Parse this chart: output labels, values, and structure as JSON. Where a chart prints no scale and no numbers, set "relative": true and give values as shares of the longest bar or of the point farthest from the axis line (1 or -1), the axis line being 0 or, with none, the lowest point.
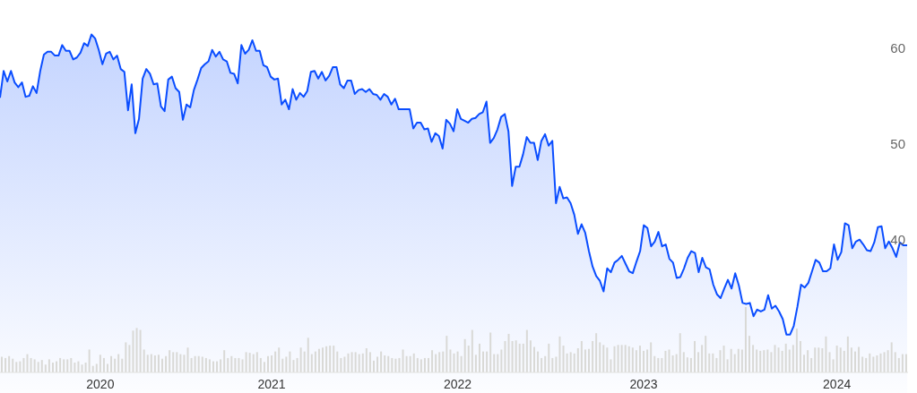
{
  "chart_data": [
    {
      "type": "area",
      "tick_labels": "y",
      "ylim": [
        24,
        65
      ],
      "yticks": [
        40,
        50,
        60
      ],
      "categories": [
        null,
        null,
        null,
        null,
        null,
        null,
        null,
        null,
        null,
        null,
        null,
        null,
        null,
        null,
        null,
        null,
        null,
        null,
        null,
        null,
        null,
        null,
        null,
        null,
        null,
        null,
        null,
        "2020",
        null,
        null,
        null,
        null,
        null,
        null,
        null,
        null,
        null,
        null,
        null,
        null,
        null,
        null,
        null,
        null,
        null,
        null,
        null,
        null,
        null,
        null,
        null,
        null,
        null,
        null,
        null,
        null,
        null,
        null,
        null,
        null,
        null,
        null,
        null,
        null,
        null,
        null,
        null,
        null,
        null,
        null,
        null,
        null,
        null,
        null,
        "2021",
        null,
        null,
        null,
        null,
        null,
        null,
        null,
        null,
        null,
        null,
        null,
        null,
        null,
        null,
        null,
        null,
        null,
        null,
        null,
        null,
        null,
        null,
        null,
        null,
        null,
        null,
        null,
        null,
        null,
        null,
        null,
        null,
        null,
        null,
        null,
        null,
        null,
        null,
        null,
        null,
        null,
        null,
        null,
        null,
        null,
        null,
        null,
        null,
        null,
        null,
        "2022",
        null,
        null,
        null,
        null,
        null,
        null,
        null,
        null,
        null,
        null,
        null,
        null,
        null,
        null,
        null,
        null,
        null,
        null,
        null,
        null,
        null,
        null,
        null,
        null,
        null,
        null,
        null,
        null,
        null,
        null,
        null,
        null,
        null,
        null,
        null,
        null,
        null,
        null,
        null,
        null,
        null,
        null,
        null,
        null,
        null,
        null,
        null,
        null,
        null,
        null,
        "2023",
        null,
        null,
        null,
        null,
        null,
        null,
        null,
        null,
        null,
        null,
        null,
        null,
        null,
        null,
        null,
        null,
        null,
        null,
        null,
        null,
        null,
        null,
        null,
        null,
        null,
        null,
        null,
        null,
        null,
        null,
        null,
        null,
        null,
        null,
        null,
        null,
        null,
        null,
        null,
        null,
        null,
        null,
        null,
        null,
        null,
        null,
        null,
        null,
        null,
        null,
        null,
        null,
        "2024",
        null,
        null,
        null,
        null,
        null,
        null,
        null,
        null,
        null,
        null,
        null,
        null,
        null,
        null,
        null,
        null,
        null,
        null,
        null
      ],
      "series": [
        {
          "color": "#0a4dff",
          "values": [
            54.8,
            57.6,
            56.5,
            57.6,
            56.4,
            55.9,
            56.4,
            54.9,
            55.0,
            56.0,
            55.3,
            57.6,
            59.3,
            59.6,
            59.6,
            59.2,
            59.2,
            60.3,
            59.7,
            59.7,
            58.8,
            59.0,
            59.5,
            60.5,
            60.2,
            61.4,
            61.0,
            59.8,
            58.3,
            59.4,
            59.6,
            58.8,
            59.2,
            57.8,
            57.5,
            53.5,
            56.2,
            51.1,
            52.6,
            56.8,
            57.8,
            57.3,
            56.2,
            56.3,
            53.9,
            53.4,
            56.7,
            57.0,
            55.8,
            55.4,
            52.5,
            54.1,
            53.8,
            55.6,
            56.7,
            57.9,
            58.3,
            58.6,
            59.8,
            59.1,
            59.6,
            58.8,
            58.6,
            57.4,
            57.3,
            56.3,
            60.3,
            59.4,
            59.8,
            60.8,
            59.7,
            59.7,
            58.2,
            58.0,
            57.0,
            56.7,
            56.8,
            54.1,
            54.6,
            53.6,
            55.7,
            54.6,
            55.3,
            54.9,
            55.5,
            57.5,
            57.6,
            56.8,
            57.5,
            56.6,
            57.1,
            58.0,
            58.0,
            56.2,
            55.8,
            56.6,
            56.6,
            55.2,
            55.6,
            55.7,
            55.4,
            55.7,
            55.2,
            55.1,
            54.6,
            55.2,
            54.9,
            54.1,
            54.7,
            53.6,
            53.6,
            53.6,
            53.6,
            51.6,
            52.2,
            52.2,
            51.5,
            51.6,
            50.2,
            51.1,
            50.8,
            49.5,
            52.5,
            52.1,
            51.3,
            53.6,
            52.6,
            52.4,
            52.2,
            52.6,
            52.7,
            53.1,
            53.3,
            54.4,
            50.1,
            50.6,
            51.5,
            52.8,
            53.1,
            51.3,
            45.6,
            47.6,
            47.6,
            48.9,
            50.7,
            50.1,
            50.1,
            48.3,
            50.3,
            51.0,
            49.8,
            50.3,
            43.8,
            45.5,
            44.3,
            44.4,
            43.8,
            42.6,
            40.6,
            41.6,
            40.7,
            38.8,
            37.2,
            36.2,
            35.7,
            34.6,
            37.0,
            36.6,
            37.6,
            37.9,
            38.3,
            37.5,
            36.7,
            36.5,
            37.7,
            38.8,
            41.5,
            41.2,
            39.3,
            39.8,
            40.8,
            39.3,
            39.5,
            38.0,
            37.6,
            36.0,
            36.1,
            37.0,
            38.1,
            38.8,
            38.6,
            36.6,
            38.1,
            37.1,
            36.9,
            35.3,
            34.3,
            33.9,
            34.9,
            35.8,
            34.9,
            36.5,
            35.2,
            33.4,
            33.3,
            33.4,
            32.0,
            32.7,
            32.5,
            32.7,
            34.2,
            32.8,
            33.1,
            32.5,
            31.7,
            30.1,
            30.1,
            31.0,
            33.0,
            35.3,
            35.0,
            35.5,
            36.7,
            37.9,
            37.6,
            36.7,
            36.7,
            37.0,
            39.5,
            37.9,
            38.7,
            41.7,
            41.5,
            39.1,
            39.8,
            40.0,
            39.5,
            38.9,
            38.8,
            39.7,
            41.3,
            41.4,
            39.1,
            39.8,
            39.1,
            38.2,
            39.7,
            39.4,
            39.4
          ]
        }
      ]
    },
    {
      "type": "bar",
      "relative": true,
      "tick_labels": "x",
      "color": "#d9d9d6",
      "categories": [
        null,
        null,
        null,
        null,
        null,
        null,
        null,
        null,
        null,
        null,
        null,
        null,
        null,
        null,
        null,
        null,
        null,
        null,
        null,
        null,
        null,
        null,
        null,
        null,
        null,
        null,
        null,
        "2020",
        null,
        null,
        null,
        null,
        null,
        null,
        null,
        null,
        null,
        null,
        null,
        null,
        null,
        null,
        null,
        null,
        null,
        null,
        null,
        null,
        null,
        null,
        null,
        null,
        null,
        null,
        null,
        null,
        null,
        null,
        null,
        null,
        null,
        null,
        null,
        null,
        null,
        null,
        null,
        null,
        null,
        null,
        null,
        null,
        null,
        null,
        "2021",
        null,
        null,
        null,
        null,
        null,
        null,
        null,
        null,
        null,
        null,
        null,
        null,
        null,
        null,
        null,
        null,
        null,
        null,
        null,
        null,
        null,
        null,
        null,
        null,
        null,
        null,
        null,
        null,
        null,
        null,
        null,
        null,
        null,
        null,
        null,
        null,
        null,
        null,
        null,
        null,
        null,
        null,
        null,
        null,
        null,
        null,
        null,
        null,
        null,
        null,
        "2022",
        null,
        null,
        null,
        null,
        null,
        null,
        null,
        null,
        null,
        null,
        null,
        null,
        null,
        null,
        null,
        null,
        null,
        null,
        null,
        null,
        null,
        null,
        null,
        null,
        null,
        null,
        null,
        null,
        null,
        null,
        null,
        null,
        null,
        null,
        null,
        null,
        null,
        null,
        null,
        null,
        null,
        null,
        null,
        null,
        null,
        null,
        null,
        null,
        null,
        null,
        "2023",
        null,
        null,
        null,
        null,
        null,
        null,
        null,
        null,
        null,
        null,
        null,
        null,
        null,
        null,
        null,
        null,
        null,
        null,
        null,
        null,
        null,
        null,
        null,
        null,
        null,
        null,
        null,
        null,
        null,
        null,
        null,
        null,
        null,
        null,
        null,
        null,
        null,
        null,
        null,
        null,
        null,
        null,
        null,
        null,
        null,
        null,
        null,
        null,
        null,
        null,
        null,
        null,
        "2024",
        null,
        null,
        null,
        null,
        null,
        null,
        null,
        null,
        null,
        null,
        null,
        null,
        null,
        null,
        null,
        null,
        null,
        null,
        null
      ],
      "values": [
        0.24,
        0.22,
        0.25,
        0.21,
        0.16,
        0.17,
        0.22,
        0.28,
        0.22,
        0.2,
        0.16,
        0.19,
        0.12,
        0.2,
        0.15,
        0.17,
        0.22,
        0.2,
        0.2,
        0.22,
        0.15,
        0.17,
        0.12,
        0.15,
        0.35,
        0.1,
        0.13,
        0.27,
        0.22,
        0.13,
        0.25,
        0.21,
        0.28,
        0.21,
        0.46,
        0.42,
        0.64,
        0.68,
        0.65,
        0.35,
        0.27,
        0.28,
        0.26,
        0.27,
        0.21,
        0.25,
        0.34,
        0.31,
        0.31,
        0.28,
        0.27,
        0.38,
        0.22,
        0.25,
        0.25,
        0.24,
        0.22,
        0.2,
        0.17,
        0.17,
        0.2,
        0.34,
        0.22,
        0.25,
        0.22,
        0.22,
        0.2,
        0.31,
        0.3,
        0.28,
        0.31,
        0.22,
        0.16,
        0.25,
        0.26,
        0.32,
        0.38,
        0.21,
        0.24,
        0.32,
        0.19,
        0.22,
        0.38,
        0.32,
        0.53,
        0.28,
        0.32,
        0.36,
        0.38,
        0.4,
        0.41,
        0.41,
        0.32,
        0.22,
        0.24,
        0.29,
        0.31,
        0.31,
        0.28,
        0.29,
        0.37,
        0.31,
        0.18,
        0.24,
        0.32,
        0.26,
        0.25,
        0.22,
        0.21,
        0.22,
        0.35,
        0.25,
        0.25,
        0.29,
        0.22,
        0.2,
        0.22,
        0.22,
        0.34,
        0.28,
        0.31,
        0.32,
        0.56,
        0.35,
        0.29,
        0.32,
        0.25,
        0.51,
        0.41,
        0.65,
        0.27,
        0.44,
        0.32,
        0.32,
        0.61,
        0.28,
        0.28,
        0.35,
        0.48,
        0.59,
        0.48,
        0.49,
        0.44,
        0.44,
        0.65,
        0.49,
        0.39,
        0.32,
        0.22,
        0.25,
        0.44,
        0.22,
        0.24,
        0.55,
        0.41,
        0.29,
        0.31,
        0.29,
        0.37,
        0.48,
        0.35,
        0.36,
        0.48,
        0.6,
        0.46,
        0.42,
        0.38,
        0.2,
        0.4,
        0.42,
        0.42,
        0.42,
        0.4,
        0.38,
        0.34,
        0.41,
        0.33,
        0.35,
        0.46,
        0.25,
        0.22,
        0.22,
        0.33,
        0.35,
        0.26,
        0.28,
        0.6,
        0.31,
        0.23,
        0.22,
        0.48,
        0.31,
        0.42,
        0.56,
        0.29,
        0.29,
        0.22,
        0.34,
        0.41,
        0.2,
        0.36,
        0.28,
        0.36,
        0.35,
        1,
        0.56,
        0.42,
        0.35,
        0.33,
        0.34,
        0.35,
        0.31,
        0.42,
        0.38,
        0.33,
        0.44,
        0.35,
        0.42,
        0.67,
        0.48,
        0.27,
        0.34,
        0.22,
        0.38,
        0.38,
        0.37,
        0.55,
        0.31,
        0.2,
        0.41,
        0.38,
        0.33,
        0.55,
        0.38,
        0.32,
        0.39,
        0.24,
        0.22,
        0.29,
        0.24,
        0.26,
        0.29,
        0.31,
        0.34,
        0.46,
        0.31,
        0.22,
        0.28,
        0.28
      ]
    }
  ]
}
